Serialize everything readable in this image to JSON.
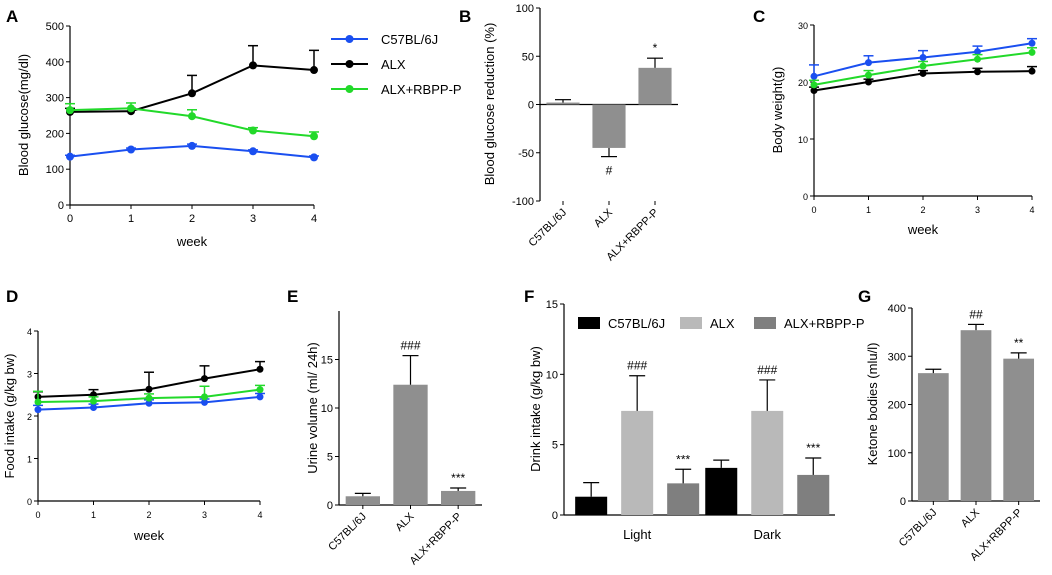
{
  "colors": {
    "c57": "#1a4ff0",
    "alx": "#000000",
    "rbpp": "#22d92a",
    "bar_gray": "#8f8f8f",
    "light_gray": "#b9b9b9",
    "mid_gray": "#7f7f7f"
  },
  "chart_data": [
    {
      "panel": "A",
      "type": "line",
      "ylabel": "Blood glucose(mg/dl)",
      "xlabel": "week",
      "x": [
        0,
        1,
        2,
        3,
        4
      ],
      "xlim": [
        0,
        4
      ],
      "ylim": [
        0,
        500
      ],
      "xticks": [
        "0",
        "1",
        "2",
        "3",
        "4"
      ],
      "yticks": [
        "0",
        "100",
        "200",
        "300",
        "400",
        "500"
      ],
      "series": [
        {
          "name": "C57BL/6J",
          "color": "#1a4ff0",
          "values": [
            135,
            155,
            165,
            150,
            133
          ],
          "err": [
            4,
            4,
            5,
            4,
            4
          ]
        },
        {
          "name": "ALX",
          "color": "#000000",
          "values": [
            260,
            262,
            312,
            390,
            377
          ],
          "err": [
            10,
            8,
            50,
            55,
            55
          ]
        },
        {
          "name": "ALX+RBPP-P",
          "color": "#22d92a",
          "values": [
            265,
            270,
            248,
            208,
            192
          ],
          "err": [
            18,
            15,
            18,
            8,
            12
          ]
        }
      ],
      "legend": [
        "C57BL/6J",
        "ALX",
        "ALX+RBPP-P"
      ]
    },
    {
      "panel": "B",
      "type": "bar",
      "ylabel": "Blood glucose reduction (%)",
      "categories": [
        "C57BL/6J",
        "ALX",
        "ALX+RBPP-P"
      ],
      "values": [
        2,
        -45,
        38
      ],
      "err": [
        3,
        9,
        10
      ],
      "ylim": [
        -100,
        100
      ],
      "yticks": [
        "-100",
        "-50",
        "0",
        "50",
        "100"
      ],
      "annotations": [
        "",
        "#",
        "*"
      ]
    },
    {
      "panel": "C",
      "type": "line",
      "ylabel": "Body weight(g)",
      "xlabel": "week",
      "x": [
        0,
        1,
        2,
        3,
        4
      ],
      "xlim": [
        0,
        4
      ],
      "ylim": [
        0,
        30
      ],
      "xticks": [
        "0",
        "1",
        "2",
        "3",
        "4"
      ],
      "yticks": [
        "0",
        "10",
        "20",
        "30"
      ],
      "series": [
        {
          "name": "C57BL/6J",
          "color": "#1a4ff0",
          "values": [
            21.0,
            23.4,
            24.3,
            25.3,
            26.8
          ],
          "err": [
            2.0,
            1.2,
            1.2,
            1.0,
            0.8
          ]
        },
        {
          "name": "ALX",
          "color": "#000000",
          "values": [
            18.5,
            20.0,
            21.5,
            21.8,
            21.9
          ],
          "err": [
            0.6,
            0.5,
            0.5,
            0.6,
            0.8
          ]
        },
        {
          "name": "ALX+RBPP-P",
          "color": "#22d92a",
          "values": [
            19.5,
            21.2,
            22.8,
            24.0,
            25.2
          ],
          "err": [
            0.8,
            0.8,
            0.8,
            0.8,
            0.8
          ]
        }
      ]
    },
    {
      "panel": "D",
      "type": "line",
      "ylabel": "Food intake (g/kg bw)",
      "xlabel": "week",
      "x": [
        0,
        1,
        2,
        3,
        4
      ],
      "xlim": [
        0,
        4
      ],
      "ylim": [
        0,
        4
      ],
      "xticks": [
        "0",
        "1",
        "2",
        "3",
        "4"
      ],
      "yticks": [
        "0",
        "1",
        "2",
        "3",
        "4"
      ],
      "series": [
        {
          "name": "C57BL/6J",
          "color": "#1a4ff0",
          "values": [
            2.15,
            2.2,
            2.3,
            2.32,
            2.45
          ],
          "err": [
            0.1,
            0.08,
            0.08,
            0.08,
            0.08
          ]
        },
        {
          "name": "ALX",
          "color": "#000000",
          "values": [
            2.45,
            2.5,
            2.63,
            2.88,
            3.1
          ],
          "err": [
            0.12,
            0.12,
            0.4,
            0.3,
            0.18
          ]
        },
        {
          "name": "ALX+RBPP-P",
          "color": "#22d92a",
          "values": [
            2.33,
            2.35,
            2.42,
            2.45,
            2.62
          ],
          "err": [
            0.25,
            0.1,
            0.1,
            0.25,
            0.1
          ]
        }
      ]
    },
    {
      "panel": "E",
      "type": "bar",
      "ylabel": "Urine volume (ml/ 24h)",
      "categories": [
        "C57BL/6J",
        "ALX",
        "ALX+RBPP-P"
      ],
      "values": [
        0.9,
        12.4,
        1.45
      ],
      "err": [
        0.3,
        3.0,
        0.3
      ],
      "ylim": [
        0,
        20
      ],
      "yticks": [
        "0",
        "5",
        "10",
        "15"
      ],
      "annotations": [
        "",
        "###",
        "***"
      ]
    },
    {
      "panel": "F",
      "type": "bar",
      "ylabel": "Drink intake (g/kg bw)",
      "categories": [
        "Light",
        "Dark"
      ],
      "ylim": [
        0,
        15
      ],
      "yticks": [
        "0",
        "5",
        "10",
        "15"
      ],
      "series": [
        {
          "name": "C57BL/6J",
          "color": "#000000",
          "values": [
            1.3,
            3.35
          ],
          "err": [
            1.0,
            0.55
          ]
        },
        {
          "name": "ALX",
          "color": "#b9b9b9",
          "values": [
            7.4,
            7.4
          ],
          "err": [
            2.5,
            2.2
          ]
        },
        {
          "name": "ALX+RBPP-P",
          "color": "#7f7f7f",
          "values": [
            2.25,
            2.85
          ],
          "err": [
            1.0,
            1.2
          ]
        }
      ],
      "annotations": [
        "",
        "###",
        "***",
        "",
        "###",
        "***"
      ],
      "legend": [
        "C57BL/6J",
        "ALX",
        "ALX+RBPP-P"
      ]
    },
    {
      "panel": "G",
      "type": "bar",
      "ylabel": "Ketone bodies (mlu/l)",
      "categories": [
        "C57BL/6J",
        "ALX",
        "ALX+RBPP-P"
      ],
      "values": [
        265,
        354,
        295
      ],
      "err": [
        8,
        12,
        12
      ],
      "ylim": [
        0,
        400
      ],
      "yticks": [
        "0",
        "100",
        "200",
        "300",
        "400"
      ],
      "annotations": [
        "",
        "##",
        "**"
      ]
    }
  ]
}
